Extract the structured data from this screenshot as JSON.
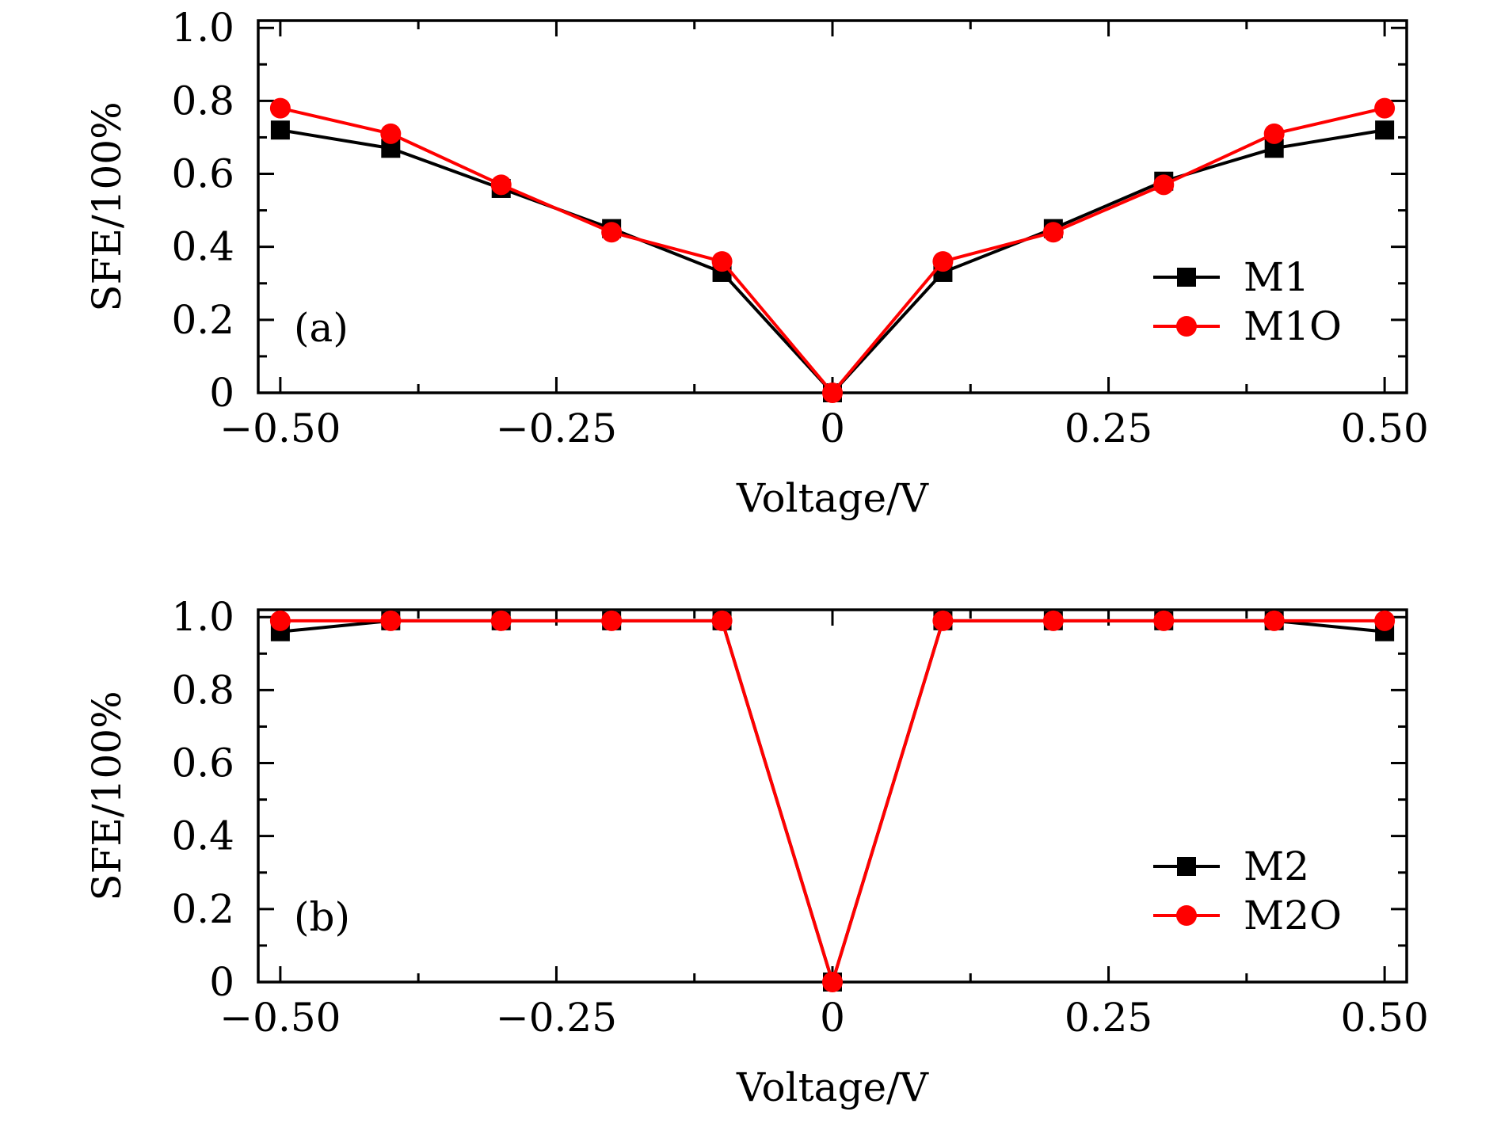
{
  "chart_data": [
    {
      "type": "line",
      "panel_label": "(a)",
      "xlabel": "Voltage/V",
      "ylabel": "SFE/100%",
      "xlim": [
        -0.52,
        0.52
      ],
      "ylim": [
        0,
        1.02
      ],
      "xticks": [
        -0.5,
        -0.25,
        0,
        0.25,
        0.5
      ],
      "xtick_labels": [
        "−0.50",
        "−0.25",
        "0",
        "0.25",
        "0.50"
      ],
      "yticks": [
        0,
        0.2,
        0.4,
        0.6,
        0.8,
        1.0
      ],
      "ytick_labels": [
        "0",
        "0.2",
        "0.4",
        "0.6",
        "0.8",
        "1.0"
      ],
      "legend_position": "right",
      "grid": false,
      "x": [
        -0.5,
        -0.4,
        -0.3,
        -0.2,
        -0.1,
        0,
        0.1,
        0.2,
        0.3,
        0.4,
        0.5
      ],
      "series": [
        {
          "name": "M1",
          "color": "#000000",
          "marker": "square",
          "values": [
            0.72,
            0.67,
            0.56,
            0.45,
            0.33,
            0,
            0.33,
            0.45,
            0.58,
            0.67,
            0.72
          ]
        },
        {
          "name": "M1O",
          "color": "#ff0000",
          "marker": "circle",
          "values": [
            0.78,
            0.71,
            0.57,
            0.44,
            0.36,
            0,
            0.36,
            0.44,
            0.57,
            0.71,
            0.78
          ]
        }
      ]
    },
    {
      "type": "line",
      "panel_label": "(b)",
      "xlabel": "Voltage/V",
      "ylabel": "SFE/100%",
      "xlim": [
        -0.52,
        0.52
      ],
      "ylim": [
        0,
        1.02
      ],
      "xticks": [
        -0.5,
        -0.25,
        0,
        0.25,
        0.5
      ],
      "xtick_labels": [
        "−0.50",
        "−0.25",
        "0",
        "0.25",
        "0.50"
      ],
      "yticks": [
        0,
        0.2,
        0.4,
        0.6,
        0.8,
        1.0
      ],
      "ytick_labels": [
        "0",
        "0.2",
        "0.4",
        "0.6",
        "0.8",
        "1.0"
      ],
      "legend_position": "right",
      "grid": false,
      "x": [
        -0.5,
        -0.4,
        -0.3,
        -0.2,
        -0.1,
        0,
        0.1,
        0.2,
        0.3,
        0.4,
        0.5
      ],
      "series": [
        {
          "name": "M2",
          "color": "#000000",
          "marker": "square",
          "values": [
            0.96,
            0.99,
            0.99,
            0.99,
            0.99,
            0,
            0.99,
            0.99,
            0.99,
            0.99,
            0.96
          ]
        },
        {
          "name": "M2O",
          "color": "#ff0000",
          "marker": "circle",
          "values": [
            0.99,
            0.99,
            0.99,
            0.99,
            0.99,
            0,
            0.99,
            0.99,
            0.99,
            0.99,
            0.99
          ]
        }
      ]
    }
  ]
}
